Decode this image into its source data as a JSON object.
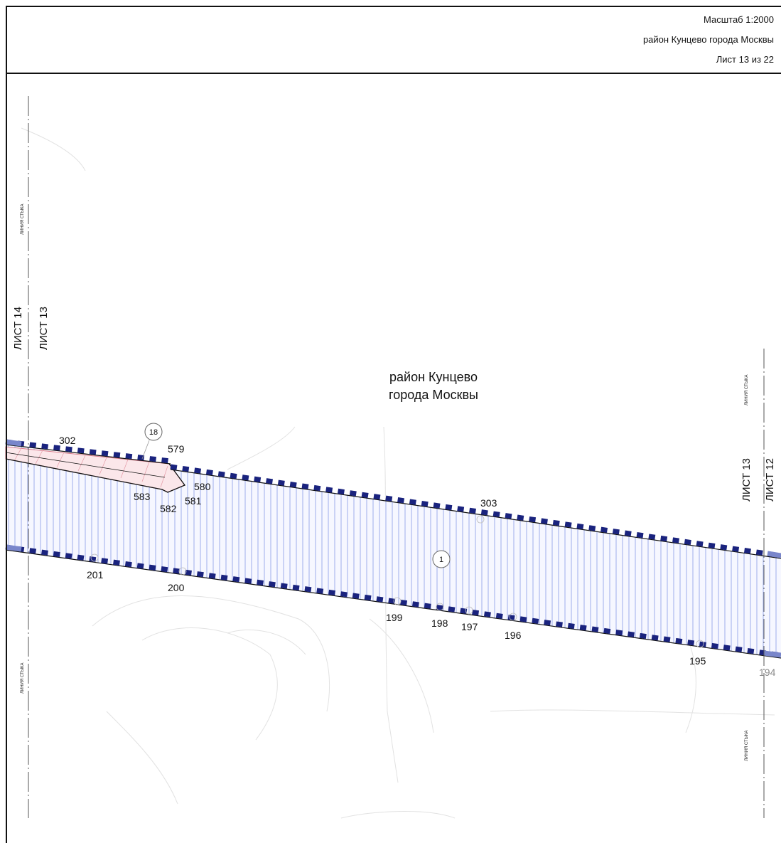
{
  "header": {
    "scale": "Масштаб 1:2000",
    "district": "район Кунцево города Москвы",
    "sheet": "Лист 13 из 22"
  },
  "map": {
    "district_label_line1": "район Кунцево",
    "district_label_line2": "города Москвы",
    "sheet_labels": {
      "left_outer": "ЛИСТ 14",
      "left_inner": "ЛИСТ 13",
      "right_inner": "ЛИСТ 13",
      "right_outer": "ЛИСТ 12"
    },
    "seam_label": "ЛИНИЯ СТЫКА",
    "zone_labels": {
      "zone_main": "1",
      "zone_small": "18"
    },
    "points": {
      "p302": "302",
      "p579": "579",
      "p580": "580",
      "p581": "581",
      "p582": "582",
      "p583": "583",
      "p303": "303",
      "p201": "201",
      "p200": "200",
      "p199": "199",
      "p198": "198",
      "p197": "197",
      "p196": "196",
      "p195": "195",
      "p194": "194"
    },
    "colors": {
      "boundary": "#1a237e",
      "boundary_light": "#7986cb",
      "hatch": "#7b8fe0",
      "small_zone": "#d87a8a",
      "frame": "#111111"
    }
  }
}
